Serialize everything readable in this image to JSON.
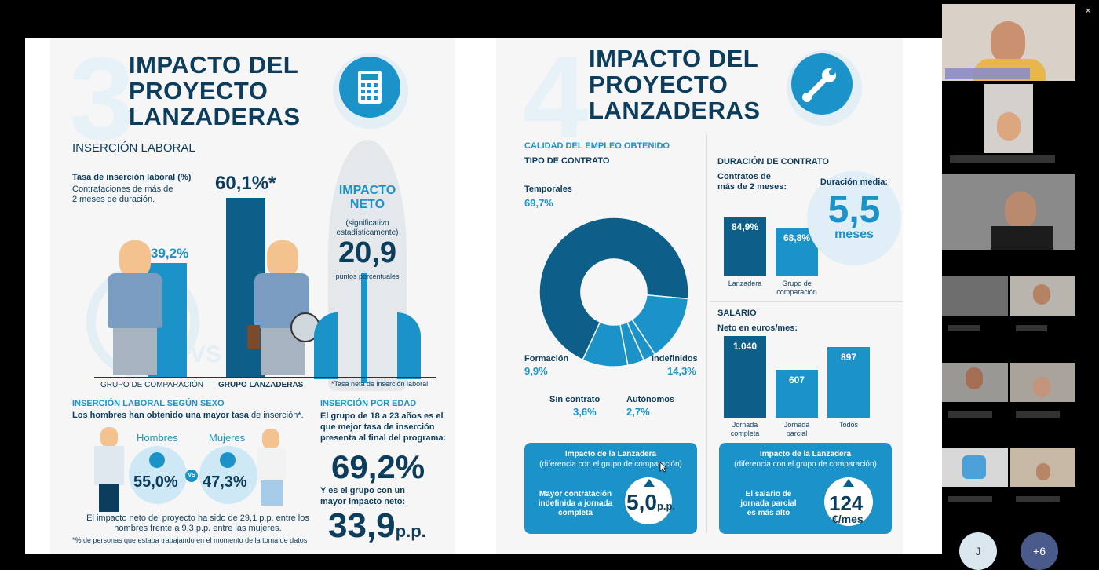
{
  "left": {
    "section_number": "3",
    "title_lines": [
      "IMPACTO DEL",
      "PROYECTO",
      "LANZADERAS"
    ],
    "subtitle": "INSERCIÓN LABORAL",
    "rate_label": "Tasa de inserción laboral (%)",
    "rate_desc_1": "Contrataciones de más de",
    "rate_desc_2": "2 meses de duración.",
    "bar_comparison_value": "39,2%",
    "bar_lanzaderas_value": "60,1%*",
    "vs_label": "VS",
    "group_comparison": "GRUPO DE COMPARACIÓN",
    "group_lanzaderas": "GRUPO LANZADERAS",
    "impact_title_1": "IMPACTO",
    "impact_title_2": "NETO",
    "impact_note_1": "(significativo",
    "impact_note_2": "estadísticamente)",
    "impact_value": "20,9",
    "impact_unit": "puntos porcentuales",
    "impact_footnote": "*Tasa neta de inserción laboral",
    "sex_heading": "INSERCIÓN LABORAL SEGÚN SEXO",
    "sex_desc_b": "Los hombres han obtenido una mayor tasa",
    "sex_desc_r": " de inserción*.",
    "men_label": "Hombres",
    "women_label": "Mujeres",
    "men_value": "55,0%",
    "women_value": "47,3%",
    "vs_small": "VS",
    "sex_footer_1": "El impacto neto del proyecto ha sido de 29,1 p.p. entre los",
    "sex_footer_2": "hombres frente a 9,3 p.p. entre las mujeres.",
    "sex_footnote": "*% de personas que estaba trabajando en el momento de la toma de datos",
    "age_heading": "INSERCIÓN POR EDAD",
    "age_desc_1": "El grupo de 18 a 23 años es el",
    "age_desc_2": "que mejor tasa de inserción",
    "age_desc_3": "presenta al final del programa:",
    "age_value": "69,2%",
    "age_desc_4": "Y es el grupo con un",
    "age_desc_5": "mayor impacto neto:",
    "age_impact": "33,9",
    "age_impact_unit": "p.p."
  },
  "right": {
    "section_number": "4",
    "title_lines": [
      "IMPACTO DEL",
      "PROYECTO",
      "LANZADERAS"
    ],
    "quality_heading": "CALIDAD DEL EMPLEO OBTENIDO",
    "contract_type": "TIPO DE CONTRATO",
    "donut": {
      "slices": [
        {
          "label": "Temporales",
          "value": "69,7%",
          "pct": 69.7,
          "color": "#0d5f8a"
        },
        {
          "label": "Indefinidos",
          "value": "14,3%",
          "pct": 14.3,
          "color": "#1b93c9"
        },
        {
          "label": "Autónomos",
          "value": "2,7%",
          "pct": 2.7,
          "color": "#1b93c9"
        },
        {
          "label": "Sin contrato",
          "value": "3,6%",
          "pct": 3.6,
          "color": "#1b93c9"
        },
        {
          "label": "Formación",
          "value": "9,9%",
          "pct": 9.9,
          "color": "#1b93c9"
        }
      ]
    },
    "duration_heading": "DURACIÓN DE CONTRATO",
    "duration_desc_1": "Contratos de",
    "duration_desc_2": "más de 2 meses:",
    "duration_bars": [
      {
        "value": "84,9%",
        "num": 84.9,
        "label_1": "Lanzadera",
        "label_2": ""
      },
      {
        "value": "68,8%",
        "num": 68.8,
        "label_1": "Grupo de",
        "label_2": "comparación"
      }
    ],
    "avg_label": "Duración media:",
    "avg_value": "5,5",
    "avg_unit": "meses",
    "salary_heading": "SALARIO",
    "salary_desc": "Neto en euros/mes:",
    "salary_bars": [
      {
        "value": "1.040",
        "num": 1040,
        "label_1": "Jornada",
        "label_2": "completa"
      },
      {
        "value": "607",
        "num": 607,
        "label_1": "Jornada",
        "label_2": "parcial"
      },
      {
        "value": "897",
        "num": 897,
        "label_1": "Todos",
        "label_2": ""
      }
    ],
    "box1_title": "Impacto de la Lanzadera",
    "box1_sub": "(diferencia con el grupo de comparación)",
    "box1_text_1": "Mayor contratación",
    "box1_text_2": "indefinida a jornada",
    "box1_text_3": "completa",
    "box1_value": "5,0",
    "box1_unit": "p.p.",
    "box2_title": "Impacto de la Lanzadera",
    "box2_sub": "(diferencia con el grupo de comparación)",
    "box2_text_1": "El salario de",
    "box2_text_2": "jornada parcial",
    "box2_text_3": "es más alto",
    "box2_value": "124",
    "box2_unit": "€/mes"
  },
  "sidebar": {
    "close_label": "×",
    "avatar_initial": "J",
    "more_label": "+6"
  },
  "colors": {
    "dark": "#0d3d5c",
    "blue": "#1b93c9",
    "deep": "#0d5f8a"
  }
}
